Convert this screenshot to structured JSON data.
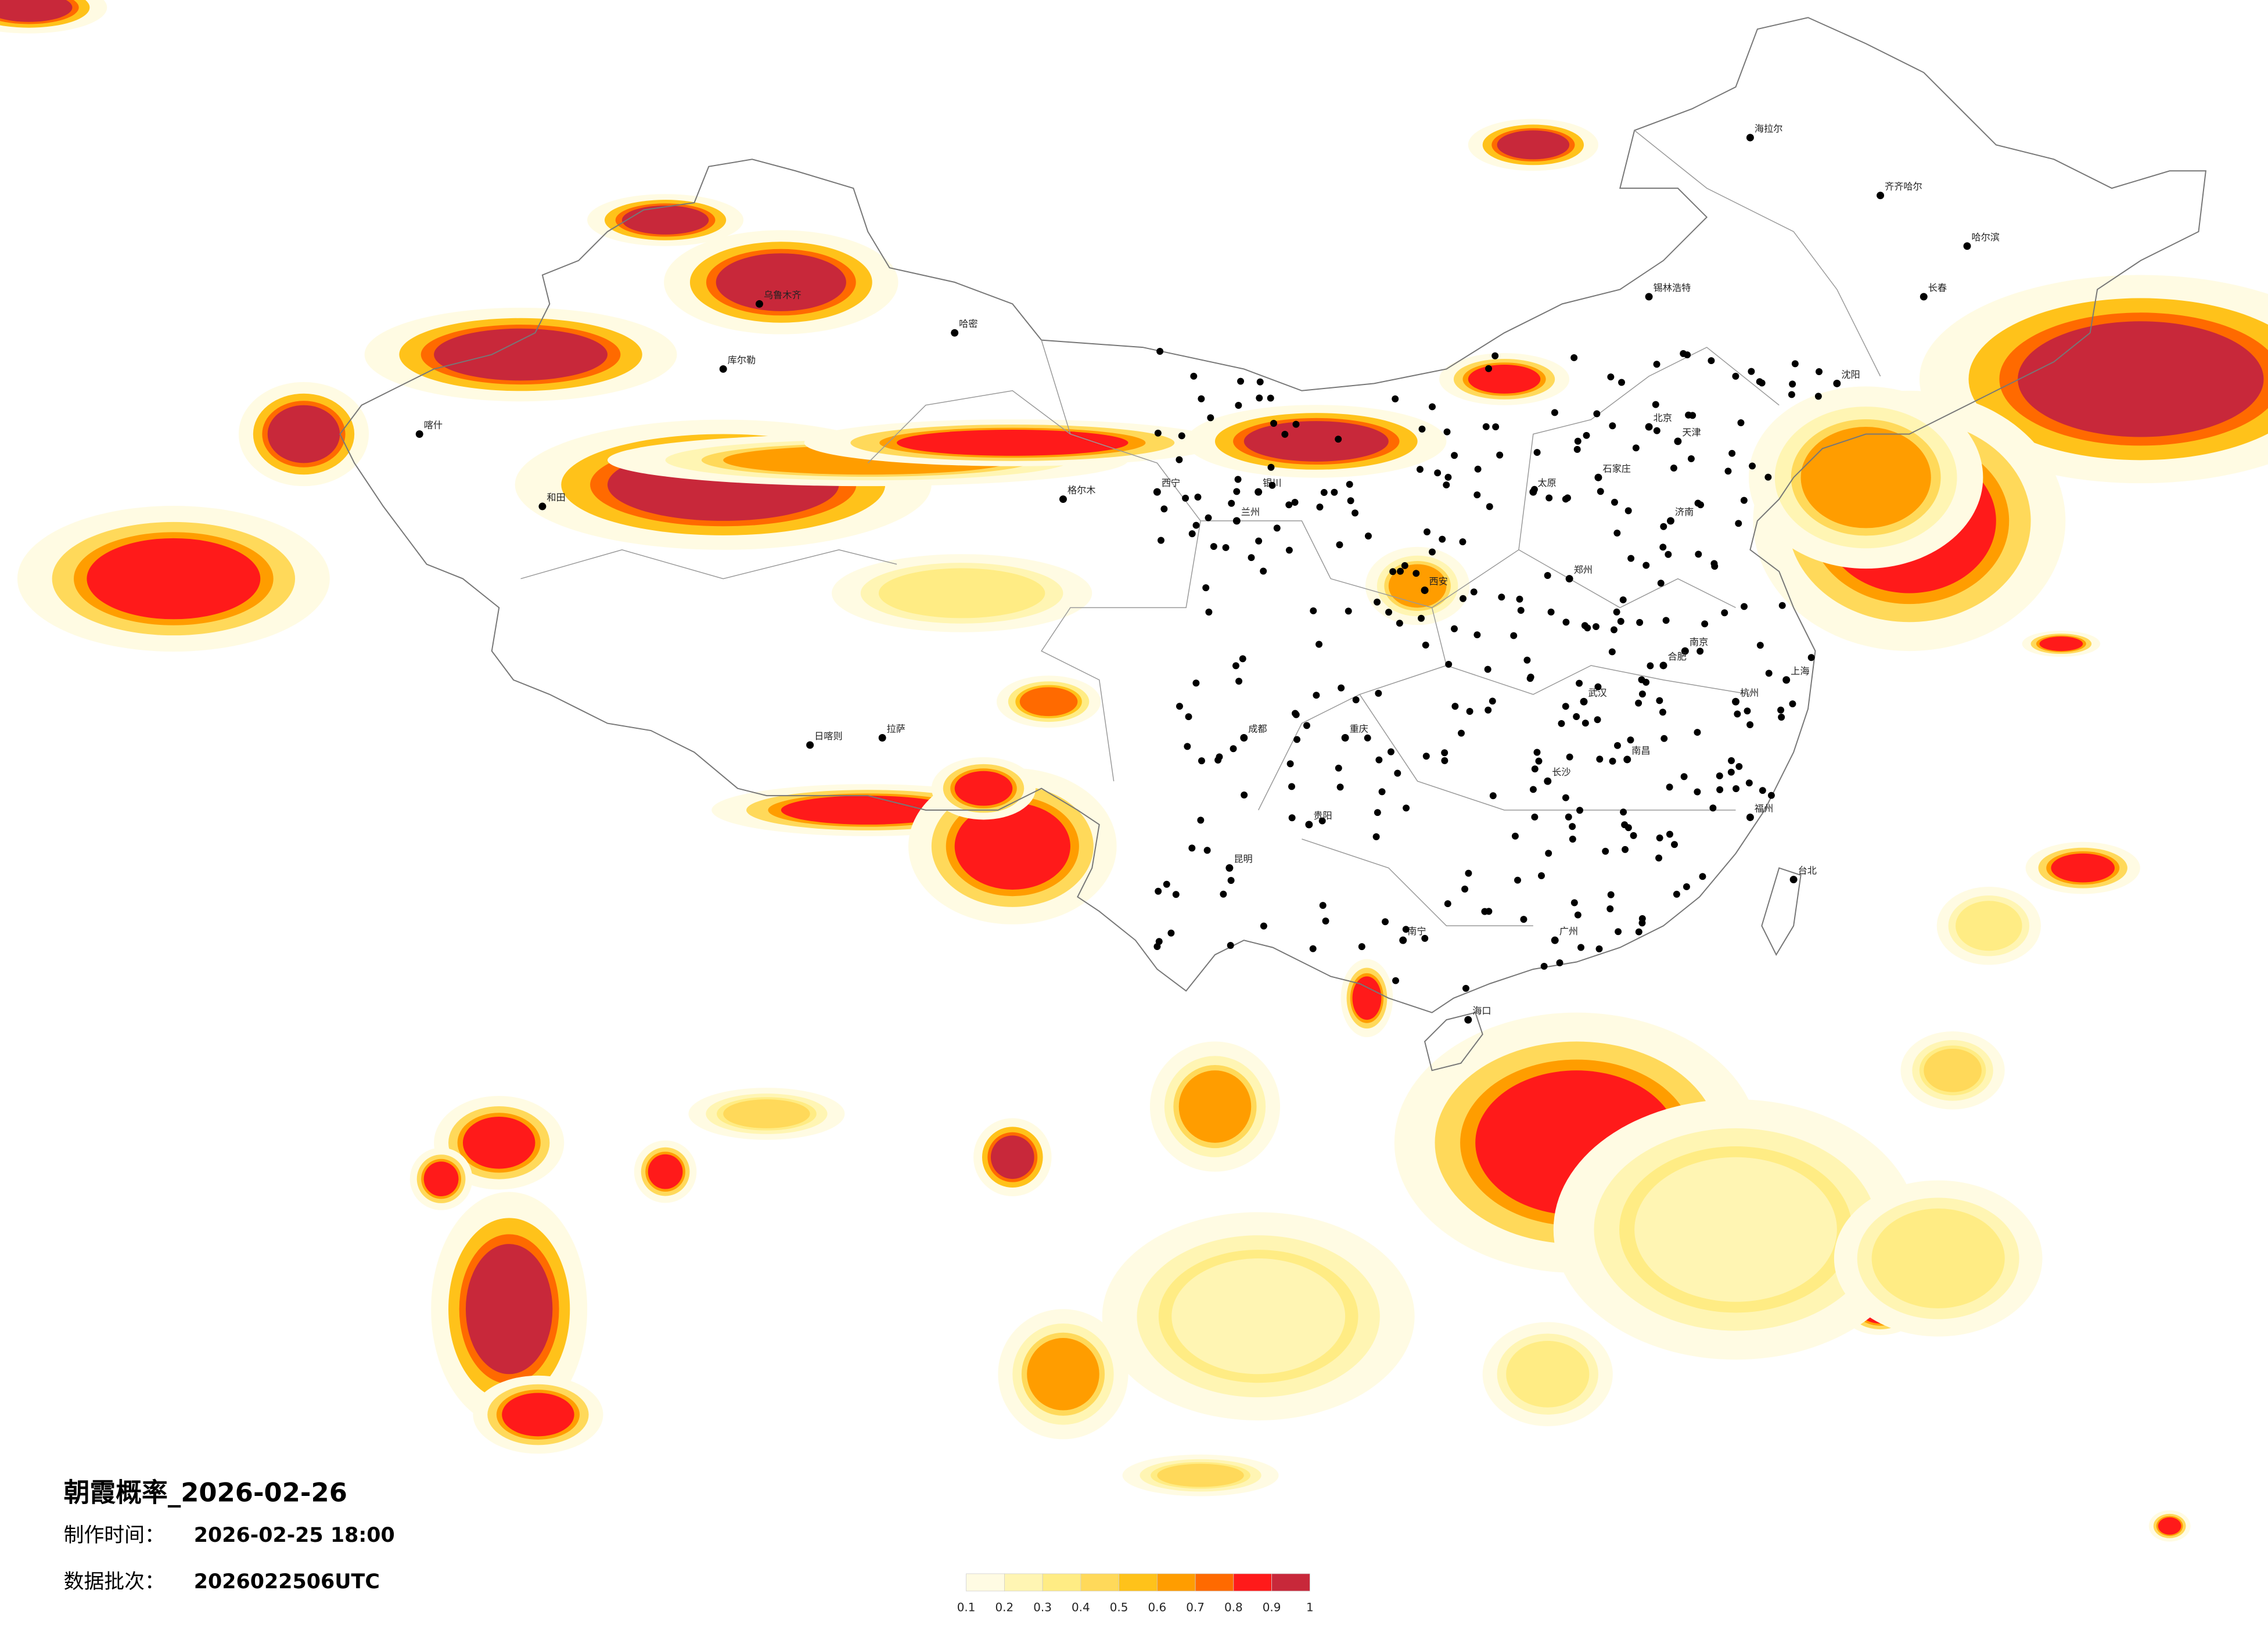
{
  "title": "朝霞概率_2026-02-26",
  "made_time": {
    "label": "制作时间：",
    "value": "2026-02-25 18:00"
  },
  "batch": {
    "label": "数据批次：",
    "value": "2026022506UTC"
  },
  "legend": {
    "ticks": [
      0.1,
      0.2,
      0.3,
      0.4,
      0.5,
      0.6,
      0.7,
      0.8,
      0.9,
      1
    ],
    "colors": [
      "#fffbe3",
      "#fff5b3",
      "#ffec84",
      "#ffd95a",
      "#ffc21a",
      "#ff9d00",
      "#ff6a00",
      "#ff1a1a",
      "#c8283a"
    ]
  },
  "cities": [
    "锡林浩特",
    "北京",
    "天津",
    "石家庄",
    "太原",
    "郑州",
    "西安",
    "兰州",
    "西宁",
    "成都",
    "重庆",
    "贵阳",
    "昆明",
    "南宁",
    "广州",
    "福州",
    "杭州",
    "南京",
    "上海",
    "武汉",
    "长沙",
    "南昌",
    "济南",
    "合肥",
    "沈阳",
    "长春",
    "哈尔滨",
    "海口",
    "台北",
    "拉萨",
    "乌鲁木齐",
    "银川",
    "日喀则",
    "喀什",
    "和田",
    "库尔勒",
    "哈密",
    "格尔木",
    "海拉尔",
    "齐齐哈尔"
  ]
}
